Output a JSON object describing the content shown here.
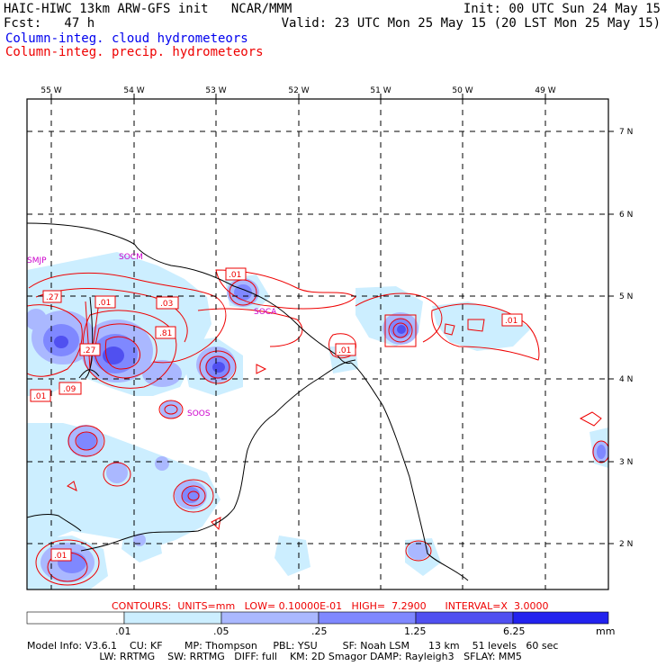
{
  "header": {
    "line1_left": "HAIC-HIWC 13km ARW-GFS init   NCAR/MMM",
    "line1_right": "Init: 00 UTC Sun 24 May 15",
    "line2_left": "Fcst:   47 h",
    "line2_right": "Valid: 23 UTC Mon 25 May 15 (20 LST Mon 25 May 15)",
    "legend_cloud": "Column-integ. cloud hydrometeors",
    "legend_precip": "Column-integ. precip. hydrometeors"
  },
  "map": {
    "lon_labels": [
      "55 W",
      "54 W",
      "53 W",
      "52 W",
      "51 W",
      "50 W",
      "49 W"
    ],
    "lat_labels": [
      "7 N",
      "6 N",
      "5 N",
      "4 N",
      "3 N",
      "2 N"
    ],
    "stations": [
      "SMJP",
      "SOCM",
      "SOCA",
      "SOOS"
    ],
    "contour_values": [
      ".27",
      ".01",
      ".03",
      ".81",
      ".27",
      ".01",
      ".09",
      ".01",
      ".01",
      ".01",
      ".01"
    ]
  },
  "contours_note": "CONTOURS:  UNITS=mm   LOW= 0.10000E-01   HIGH=  7.2900      INTERVAL=X  3.0000",
  "colorbar": {
    "ticks": [
      ".01",
      ".05",
      ".25",
      "1.25",
      "6.25",
      "mm"
    ],
    "colors": [
      "#ffffff",
      "#cceeff",
      "#aab8ff",
      "#7f88ff",
      "#5050f0",
      "#2222ee"
    ]
  },
  "model_info": {
    "line1": "Model Info: V3.6.1    CU: KF       MP: Thompson     PBL: YSU        SF: Noah LSM      13 km    51 levels   60 sec",
    "line2": "                       LW: RRTMG    SW: RRTMG   DIFF: full    KM: 2D Smagor DAMP: Rayleigh3   SFLAY: MM5"
  }
}
